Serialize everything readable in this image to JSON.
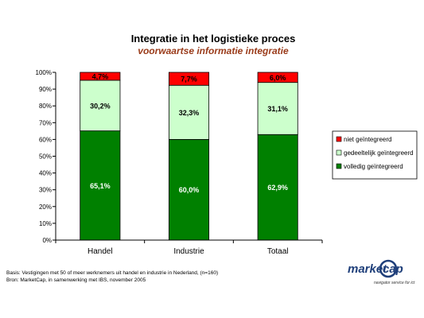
{
  "chart_data": {
    "type": "bar",
    "stacked": true,
    "title": "Integratie in het logistieke proces",
    "subtitle": "voorwaartse informatie integratie",
    "categories": [
      "Handel",
      "Industrie",
      "Totaal"
    ],
    "series": [
      {
        "name": "volledig geïntegreerd",
        "color": "#008000",
        "label_color": "#ffffff",
        "values": [
          65.1,
          60.0,
          62.9
        ],
        "labels": [
          "65,1%",
          "60,0%",
          "62,9%"
        ]
      },
      {
        "name": "gedeeltelijk geïntegreerd",
        "color": "#ccffcc",
        "label_color": "#000000",
        "values": [
          30.2,
          32.3,
          31.1
        ],
        "labels": [
          "30,2%",
          "32,3%",
          "31,1%"
        ]
      },
      {
        "name": "niet geïntegreerd",
        "color": "#ff0000",
        "label_color": "#000000",
        "values": [
          4.7,
          7.7,
          6.0
        ],
        "labels": [
          "4,7%",
          "7,7%",
          "6,0%"
        ]
      }
    ],
    "ylim": [
      0,
      100
    ],
    "yticks": [
      "0%",
      "10%",
      "20%",
      "30%",
      "40%",
      "50%",
      "60%",
      "70%",
      "80%",
      "90%",
      "100%"
    ],
    "legend": "right",
    "legend_order": [
      "niet geïntegreerd",
      "gedeeltelijk geïntegreerd",
      "volledig geïntegreerd"
    ]
  },
  "footnote": {
    "line1": "Basis: Vestigingen met 50 of meer werknemers uit handel en industrie in Nederland, (n=160)",
    "line2": "Bron: MarketCap, in samenwerking met IBS, november 2005"
  },
  "logo": {
    "word1": "market",
    "word2": "cap",
    "tagline": "navigator service for ict",
    "color": "#1f3f7a"
  }
}
